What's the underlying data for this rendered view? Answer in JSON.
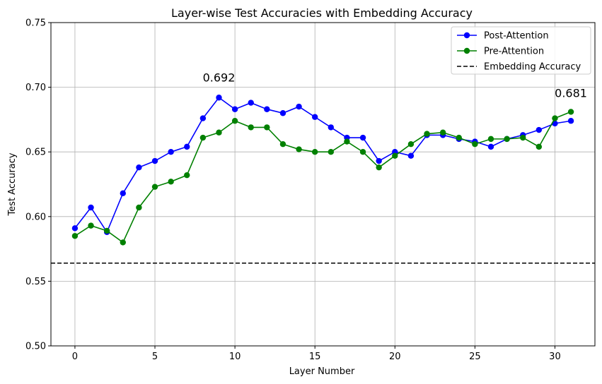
{
  "chart_data": {
    "type": "line",
    "title": "Layer-wise Test Accuracies with Embedding Accuracy",
    "xlabel": "Layer Number",
    "ylabel": "Test Accuracy",
    "xlim": [
      -1.5,
      32.5
    ],
    "ylim": [
      0.5,
      0.75
    ],
    "xticks": [
      0,
      5,
      10,
      15,
      20,
      25,
      30
    ],
    "yticks": [
      0.5,
      0.55,
      0.6,
      0.65,
      0.7,
      0.75
    ],
    "xtick_labels": [
      "0",
      "5",
      "10",
      "15",
      "20",
      "25",
      "30"
    ],
    "ytick_labels": [
      "0.50",
      "0.55",
      "0.60",
      "0.65",
      "0.70",
      "0.75"
    ],
    "grid": true,
    "legend_position": "top-right",
    "x": [
      0,
      1,
      2,
      3,
      4,
      5,
      6,
      7,
      8,
      9,
      10,
      11,
      12,
      13,
      14,
      15,
      16,
      17,
      18,
      19,
      20,
      21,
      22,
      23,
      24,
      25,
      26,
      27,
      28,
      29,
      30,
      31
    ],
    "series": [
      {
        "name": "Post-Attention",
        "color": "#0000ff",
        "values": [
          0.591,
          0.607,
          0.588,
          0.618,
          0.638,
          0.643,
          0.65,
          0.654,
          0.676,
          0.692,
          0.683,
          0.688,
          0.683,
          0.68,
          0.685,
          0.677,
          0.669,
          0.661,
          0.661,
          0.643,
          0.65,
          0.647,
          0.663,
          0.663,
          0.66,
          0.658,
          0.654,
          0.66,
          0.663,
          0.667,
          0.672,
          0.674
        ]
      },
      {
        "name": "Pre-Attention",
        "color": "#008000",
        "values": [
          0.585,
          0.593,
          0.589,
          0.58,
          0.607,
          0.623,
          0.627,
          0.632,
          0.661,
          0.665,
          0.674,
          0.669,
          0.669,
          0.656,
          0.652,
          0.65,
          0.65,
          0.658,
          0.65,
          0.638,
          0.647,
          0.656,
          0.664,
          0.665,
          0.661,
          0.656,
          0.66,
          0.66,
          0.661,
          0.654,
          0.676,
          0.681
        ]
      }
    ],
    "reference_lines": [
      {
        "name": "Embedding Accuracy",
        "value": 0.564,
        "color": "#000000",
        "style": "dashed"
      }
    ],
    "annotations": [
      {
        "text": "0.692",
        "x": 9,
        "y": 0.7045
      },
      {
        "text": "0.681",
        "x": 31,
        "y": 0.6925
      }
    ]
  }
}
